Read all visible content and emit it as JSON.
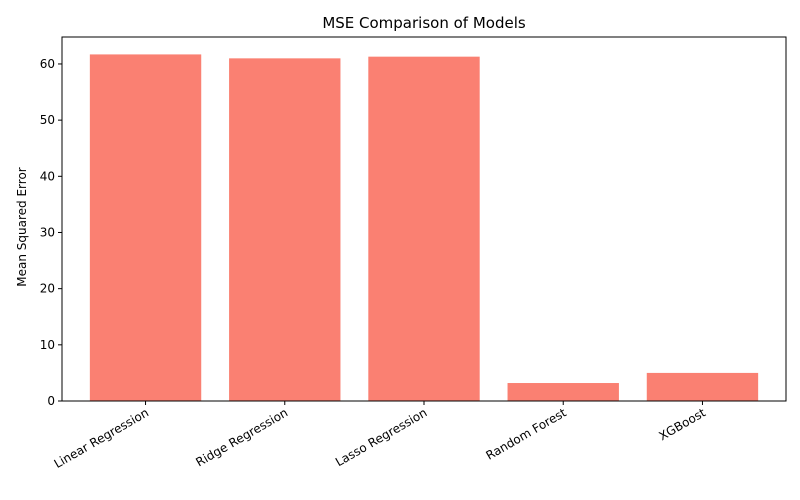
{
  "chart_data": {
    "type": "bar",
    "title": "MSE Comparison of Models",
    "xlabel": "",
    "ylabel": "Mean Squared Error",
    "categories": [
      "Linear Regression",
      "Ridge Regression",
      "Lasso Regression",
      "Random Forest",
      "XGBoost"
    ],
    "values": [
      61.7,
      61.0,
      61.3,
      3.2,
      5.0
    ],
    "ylim": [
      0,
      64.8
    ],
    "yticks": [
      0,
      10,
      20,
      30,
      40,
      50,
      60
    ],
    "bar_color": "#fa8072",
    "grid": false,
    "legend": "none"
  }
}
